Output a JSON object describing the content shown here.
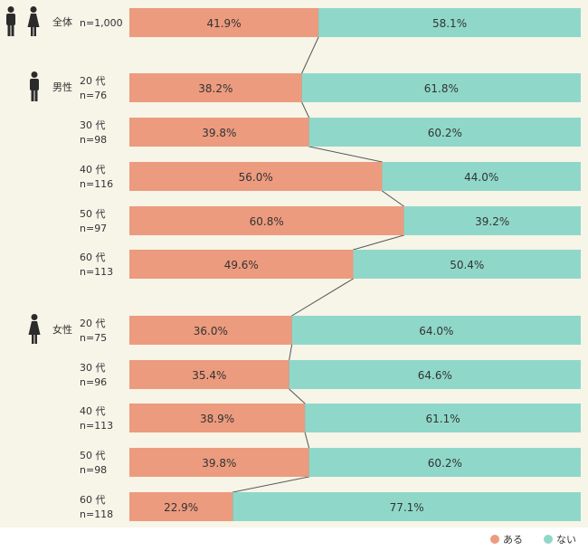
{
  "chart_data": {
    "type": "bar",
    "stacked": true,
    "orientation": "horizontal",
    "percent_suffix": "%",
    "legend": {
      "placement": "bottom-right",
      "entries": [
        "ある",
        "ない"
      ]
    },
    "colors": {
      "aru": "#ec9b7e",
      "nai": "#8fd8c9",
      "background": "#f7f4e8",
      "icon": "#2b2b2b"
    },
    "groups": [
      {
        "label": "全体",
        "icon": "man-woman"
      },
      {
        "label": "男性",
        "icon": "man"
      },
      {
        "label": "女性",
        "icon": "woman"
      }
    ],
    "rows": [
      {
        "group": 0,
        "age": "",
        "n": "n=1,000",
        "aru": 41.9,
        "nai": 58.1
      },
      {
        "group": 1,
        "age": "20 代",
        "n": "n=76",
        "aru": 38.2,
        "nai": 61.8
      },
      {
        "group": 1,
        "age": "30 代",
        "n": "n=98",
        "aru": 39.8,
        "nai": 60.2
      },
      {
        "group": 1,
        "age": "40 代",
        "n": "n=116",
        "aru": 56.0,
        "nai": 44.0
      },
      {
        "group": 1,
        "age": "50 代",
        "n": "n=97",
        "aru": 60.8,
        "nai": 39.2
      },
      {
        "group": 1,
        "age": "60 代",
        "n": "n=113",
        "aru": 49.6,
        "nai": 50.4
      },
      {
        "group": 2,
        "age": "20 代",
        "n": "n=75",
        "aru": 36.0,
        "nai": 64.0
      },
      {
        "group": 2,
        "age": "30 代",
        "n": "n=96",
        "aru": 35.4,
        "nai": 64.6
      },
      {
        "group": 2,
        "age": "40 代",
        "n": "n=113",
        "aru": 38.9,
        "nai": 61.1
      },
      {
        "group": 2,
        "age": "50 代",
        "n": "n=98",
        "aru": 39.8,
        "nai": 60.2
      },
      {
        "group": 2,
        "age": "60 代",
        "n": "n=118",
        "aru": 22.9,
        "nai": 77.1
      }
    ]
  }
}
